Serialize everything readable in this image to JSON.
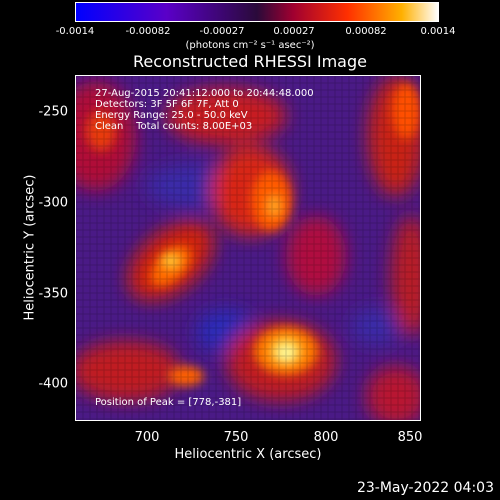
{
  "colorbar": {
    "ticks": [
      "-0.0014",
      "-0.00082",
      "-0.00027",
      "0.00027",
      "0.00082",
      "0.0014"
    ],
    "unit": "(photons cm⁻² s⁻¹ asec⁻²)"
  },
  "title": "Reconstructed RHESSI Image",
  "overlay": {
    "time_range": "27-Aug-2015 20:41:12.000 to 20:44:48.000",
    "detectors": "Detectors: 3F 5F 6F 7F, Att 0",
    "energy_range": "Energy Range: 25.0 - 50.0 keV",
    "clean_counts": "Clean    Total counts: 8.00E+03",
    "peak": "Position of Peak = [778,-381]"
  },
  "axes": {
    "xlabel": "Heliocentric X (arcsec)",
    "ylabel": "Heliocentric Y (arcsec)",
    "xticks": [
      "700",
      "750",
      "800",
      "850"
    ],
    "yticks": [
      "-250",
      "-300",
      "-350",
      "-400"
    ]
  },
  "footer": {
    "timestamp": "23-May-2022 04:03"
  },
  "colors": {
    "low": "#2d0a8a",
    "mid": "#b0004a",
    "high": "#ff6000",
    "peak": "#ffffa0"
  }
}
